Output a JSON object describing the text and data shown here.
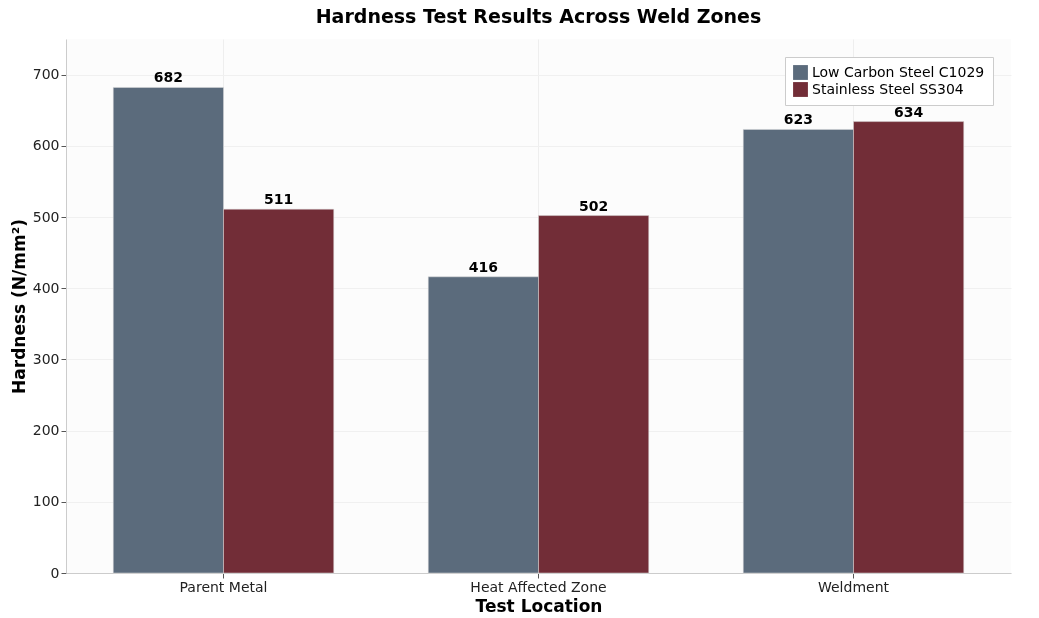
{
  "chart_data": {
    "type": "bar",
    "title": "Hardness Test Results Across Weld Zones",
    "xlabel": "Test Location",
    "ylabel": "Hardness (N/mm²)",
    "categories": [
      "Parent Metal",
      "Heat Affected Zone",
      "Weldment"
    ],
    "series": [
      {
        "name": "Low Carbon Steel C1029",
        "color": "#5b6b7c",
        "values": [
          682,
          416,
          623
        ]
      },
      {
        "name": "Stainless Steel SS304",
        "color": "#722d37",
        "values": [
          511,
          502,
          634
        ]
      }
    ],
    "ylim": [
      0,
      750
    ],
    "yticks": [
      0,
      100,
      200,
      300,
      400,
      500,
      600,
      700
    ],
    "grid": true,
    "legend": "top right",
    "data_labels": true
  }
}
